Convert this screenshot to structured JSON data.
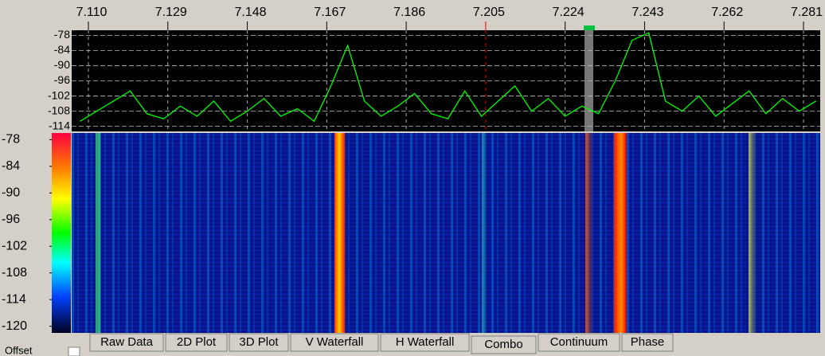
{
  "frequency_axis": {
    "xlim": [
      7.106,
      7.285
    ],
    "ticks": [
      {
        "value": 7.11,
        "label": "7.110"
      },
      {
        "value": 7.129,
        "label": "7.129"
      },
      {
        "value": 7.148,
        "label": "7.148"
      },
      {
        "value": 7.167,
        "label": "7.167"
      },
      {
        "value": 7.186,
        "label": "7.186"
      },
      {
        "value": 7.205,
        "label": "7.205"
      },
      {
        "value": 7.224,
        "label": "7.224"
      },
      {
        "value": 7.243,
        "label": "7.243"
      },
      {
        "value": 7.262,
        "label": "7.262"
      },
      {
        "value": 7.281,
        "label": "7.281"
      }
    ]
  },
  "spectrum": {
    "type": "line",
    "color": "#00ff00",
    "ylim": [
      -116,
      -76
    ],
    "yticks": [
      -78,
      -84,
      -90,
      -96,
      -102,
      -108,
      -114
    ],
    "x": [
      7.108,
      7.112,
      7.116,
      7.12,
      7.124,
      7.128,
      7.132,
      7.136,
      7.14,
      7.144,
      7.148,
      7.152,
      7.156,
      7.16,
      7.164,
      7.168,
      7.172,
      7.176,
      7.18,
      7.184,
      7.188,
      7.192,
      7.196,
      7.2,
      7.204,
      7.208,
      7.212,
      7.216,
      7.22,
      7.224,
      7.228,
      7.232,
      7.236,
      7.24,
      7.244,
      7.248,
      7.252,
      7.256,
      7.26,
      7.264,
      7.268,
      7.272,
      7.276,
      7.28,
      7.284
    ],
    "values": [
      -112,
      -108,
      -104,
      -100,
      -109,
      -111,
      -106,
      -110,
      -104,
      -112,
      -108,
      -103,
      -110,
      -107,
      -112,
      -98,
      -82,
      -104,
      -110,
      -106,
      -101,
      -109,
      -111,
      -100,
      -110,
      -104,
      -98,
      -108,
      -103,
      -110,
      -106,
      -109,
      -96,
      -80,
      -77,
      -104,
      -108,
      -102,
      -110,
      -105,
      -100,
      -109,
      -103,
      -108,
      -104
    ]
  },
  "waterfall": {
    "ylim": [
      -121.5,
      -76.5
    ],
    "ticks": [
      -78,
      -84,
      -90,
      -96,
      -102,
      -108,
      -114,
      -120
    ]
  },
  "tabs": [
    "Raw Data",
    "2D Plot",
    "3D Plot",
    "V Waterfall",
    "H Waterfall",
    "Combo",
    "Continuum",
    "Phase"
  ],
  "selected_tab": "Combo",
  "offset_label": "Offset"
}
